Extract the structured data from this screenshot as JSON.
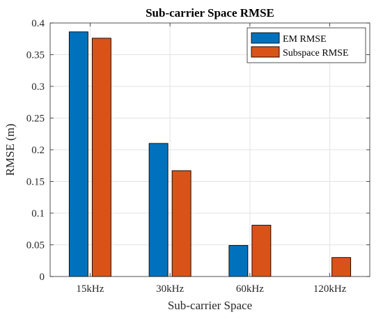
{
  "chart_data": {
    "type": "bar",
    "title": "Sub-carrier Space RMSE",
    "xlabel": "Sub-carrier Space",
    "ylabel": "RMSE (m)",
    "categories": [
      "15kHz",
      "30kHz",
      "60kHz",
      "120kHz"
    ],
    "series": [
      {
        "name": "EM RMSE",
        "color": "#0072BD",
        "values": [
          0.386,
          0.21,
          0.049,
          0
        ]
      },
      {
        "name": "Subspace RMSE",
        "color": "#D95319",
        "values": [
          0.376,
          0.167,
          0.081,
          0.03
        ]
      }
    ],
    "ylim": [
      0,
      0.4
    ],
    "yticks": [
      0,
      0.05,
      0.1,
      0.15,
      0.2,
      0.25,
      0.3,
      0.35,
      0.4
    ],
    "ytick_labels": [
      "0",
      "0.05",
      "0.1",
      "0.15",
      "0.2",
      "0.25",
      "0.3",
      "0.35",
      "0.4"
    ],
    "grid": true,
    "legend": "top-right"
  }
}
